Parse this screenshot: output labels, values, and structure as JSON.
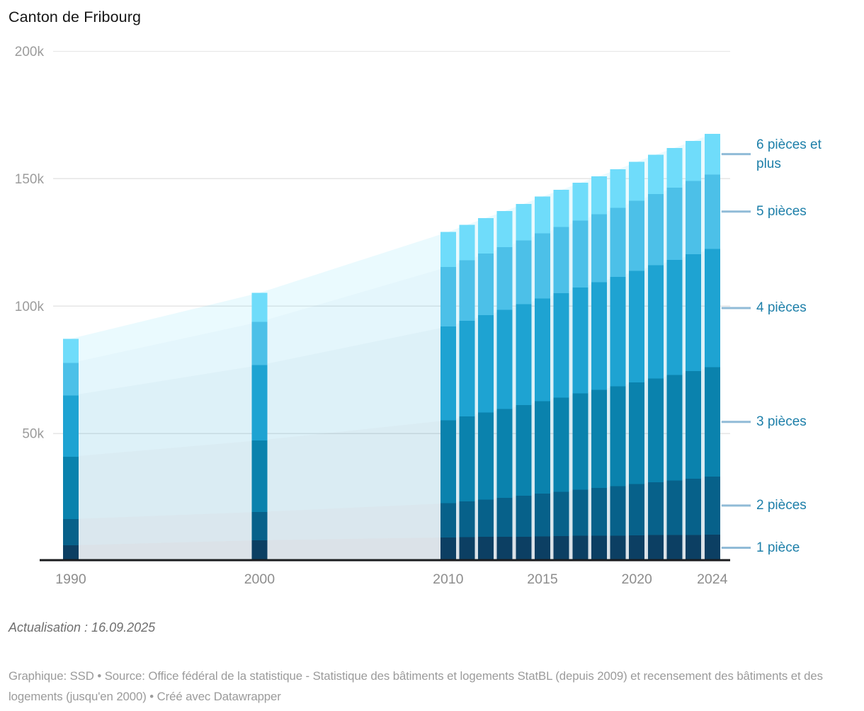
{
  "title": "Canton de Fribourg",
  "update_note": "Actualisation : 16.09.2025",
  "footer": "Graphique: SSD • Source: Office fédéral de la statistique - Statistique des bâtiments et logements StatBL (depuis 2009) et recensement des bâtiments et des logements (jusqu'en 2000) • Créé avec Datawrapper",
  "colors": {
    "legend_text": "#1d7fa9",
    "legend_connector": "#84b4d3",
    "gridline": "#e6e6e6",
    "baseline": "#1a1b1e",
    "axis_text": "#9c9c9c",
    "title_text": "#161616"
  },
  "chart_data": {
    "type": "bar",
    "stacked": true,
    "title": "Canton de Fribourg",
    "xlabel": "",
    "ylabel": "",
    "ylim": [
      0,
      200000
    ],
    "grid": true,
    "legend_position": "right-direct-labels",
    "x": [
      1990,
      2000,
      2010,
      2011,
      2012,
      2013,
      2014,
      2015,
      2016,
      2017,
      2018,
      2019,
      2020,
      2021,
      2022,
      2023,
      2024
    ],
    "x_axis": {
      "ticks": [
        {
          "label": "1990",
          "year": 1990
        },
        {
          "label": "2000",
          "year": 2000
        },
        {
          "label": "2010",
          "year": 2010
        },
        {
          "label": "2015",
          "year": 2015
        },
        {
          "label": "2020",
          "year": 2020
        },
        {
          "label": "2024",
          "year": 2024
        }
      ]
    },
    "y_axis": {
      "ticks": [
        {
          "label": "50k",
          "value": 50000
        },
        {
          "label": "100k",
          "value": 100000
        },
        {
          "label": "150k",
          "value": 150000
        },
        {
          "label": "200k",
          "value": 200000
        }
      ]
    },
    "series": [
      {
        "name": "1 pièce",
        "color": "#0c3f63",
        "values": [
          6100,
          8100,
          9200,
          9300,
          9400,
          9400,
          9500,
          9600,
          9700,
          9800,
          9800,
          9900,
          10000,
          10100,
          10100,
          10200,
          10300
        ]
      },
      {
        "name": "2 pièces",
        "color": "#07618a",
        "values": [
          10300,
          11100,
          13400,
          14100,
          14700,
          15400,
          16100,
          16800,
          17400,
          18100,
          18800,
          19400,
          20100,
          20800,
          21500,
          22100,
          22800
        ]
      },
      {
        "name": "3 pièces",
        "color": "#0a82ad",
        "values": [
          24500,
          28100,
          32600,
          33300,
          34100,
          34800,
          35500,
          36300,
          37000,
          37800,
          38500,
          39200,
          40000,
          40700,
          41400,
          42200,
          42900
        ]
      },
      {
        "name": "4 pièces",
        "color": "#1ea3d2",
        "values": [
          24000,
          29500,
          36800,
          37500,
          38200,
          38900,
          39600,
          40300,
          41000,
          41600,
          42300,
          43000,
          43700,
          44400,
          45100,
          45800,
          46500
        ]
      },
      {
        "name": "5 pièces",
        "color": "#4cc0e8",
        "values": [
          12800,
          17000,
          23400,
          23800,
          24200,
          24600,
          25100,
          25500,
          25900,
          26300,
          26700,
          27100,
          27500,
          28000,
          28400,
          28800,
          29200
        ]
      },
      {
        "name": "6 pièces et plus",
        "color": "#6fdcfa",
        "values": [
          9500,
          11400,
          13700,
          13900,
          14000,
          14200,
          14300,
          14500,
          14600,
          14800,
          14900,
          15100,
          15300,
          15400,
          15600,
          15700,
          15900
        ]
      }
    ]
  }
}
